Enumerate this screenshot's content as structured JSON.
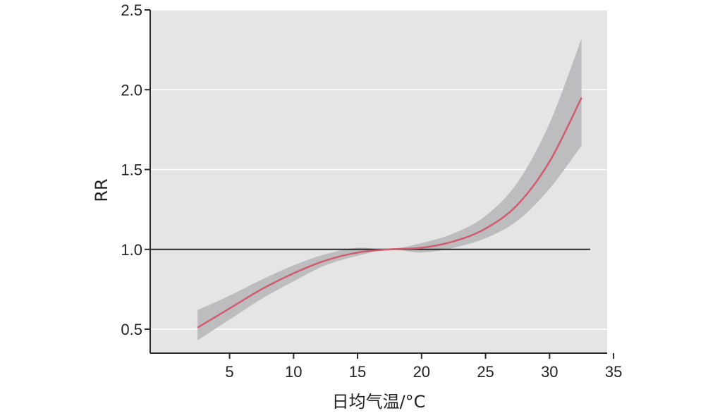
{
  "chart_data": {
    "type": "line",
    "title": "",
    "xlabel": "日均气温/°C",
    "ylabel": "RR",
    "xlim": [
      -1.2,
      34.5
    ],
    "ylim": [
      0.35,
      2.5
    ],
    "x_ticks": [
      5,
      10,
      15,
      20,
      25,
      30,
      35
    ],
    "x_tick_labels": [
      "5",
      "10",
      "15",
      "20",
      "25",
      "30",
      "35"
    ],
    "y_ticks": [
      0.5,
      1.0,
      1.5,
      2.0,
      2.5
    ],
    "y_tick_labels": [
      "0.5",
      "1.0",
      "1.5",
      "2.0",
      "2.5"
    ],
    "grid": "horizontal",
    "reference_line": 1.0,
    "x": [
      2.5,
      5,
      7.5,
      10,
      12.5,
      15,
      17.5,
      20,
      22.5,
      25,
      27.5,
      30,
      32.5
    ],
    "series": [
      {
        "values": [
          0.51,
          0.63,
          0.75,
          0.85,
          0.93,
          0.98,
          1.0,
          1.01,
          1.05,
          1.13,
          1.28,
          1.55,
          1.95
        ],
        "lower": [
          0.43,
          0.56,
          0.69,
          0.8,
          0.9,
          0.96,
          1.0,
          0.98,
          1.01,
          1.07,
          1.18,
          1.38,
          1.65
        ],
        "upper": [
          0.62,
          0.71,
          0.81,
          0.9,
          0.97,
          1.01,
          1.0,
          1.04,
          1.1,
          1.21,
          1.42,
          1.79,
          2.32
        ]
      }
    ],
    "colors": {
      "plot_background": "#e5e5e5",
      "gridline": "#ffffff",
      "confidence_band": "#bdbdbf",
      "line": "#cf5d6e",
      "reference_line": "#2a2a2a",
      "axis": "#2a2a2a"
    }
  }
}
